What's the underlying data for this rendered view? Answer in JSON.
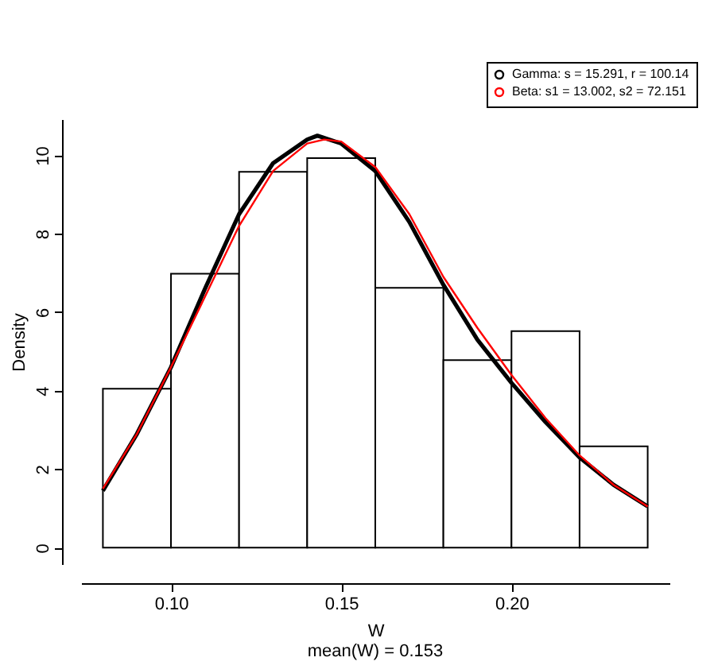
{
  "chart_data": {
    "type": "histogram",
    "xlabel": "W",
    "ylabel": "Density",
    "annotations": [
      "mean(W) = 0.153"
    ],
    "bins": [
      0.08,
      0.1,
      0.12,
      0.14,
      0.16,
      0.18,
      0.2,
      0.22,
      0.24
    ],
    "values": [
      4.05,
      6.98,
      9.58,
      9.93,
      6.62,
      4.78,
      5.52,
      2.58
    ],
    "series": [
      {
        "name": "Gamma: s = 15.291, r = 100.14",
        "type": "line",
        "color": "#000000",
        "x": [
          0.08,
          0.09,
          0.1,
          0.11,
          0.12,
          0.13,
          0.14,
          0.143,
          0.15,
          0.16,
          0.17,
          0.18,
          0.19,
          0.2,
          0.21,
          0.22,
          0.23,
          0.24
        ],
        "values": [
          1.45,
          2.9,
          4.6,
          6.6,
          8.5,
          9.8,
          10.4,
          10.5,
          10.3,
          9.6,
          8.3,
          6.7,
          5.3,
          4.2,
          3.2,
          2.3,
          1.6,
          1.05
        ]
      },
      {
        "name": "Beta: s1 = 13.002, s2 = 72.151",
        "type": "line",
        "color": "#ff0000",
        "x": [
          0.08,
          0.09,
          0.1,
          0.11,
          0.12,
          0.13,
          0.14,
          0.145,
          0.15,
          0.16,
          0.17,
          0.18,
          0.19,
          0.2,
          0.21,
          0.22,
          0.23,
          0.24
        ],
        "values": [
          1.5,
          2.9,
          4.6,
          6.4,
          8.2,
          9.6,
          10.3,
          10.4,
          10.35,
          9.7,
          8.5,
          6.9,
          5.6,
          4.4,
          3.3,
          2.35,
          1.6,
          1.05
        ]
      }
    ],
    "xlim": [
      0.0736,
      0.2464
    ],
    "ylim": [
      -0.42,
      10.92
    ],
    "xticks": [
      {
        "value": 0.1,
        "label": "0.10"
      },
      {
        "value": 0.15,
        "label": "0.15"
      },
      {
        "value": 0.2,
        "label": "0.20"
      }
    ],
    "yticks": [
      0,
      2,
      4,
      6,
      8,
      10
    ],
    "legend": "top right",
    "grid": false
  }
}
